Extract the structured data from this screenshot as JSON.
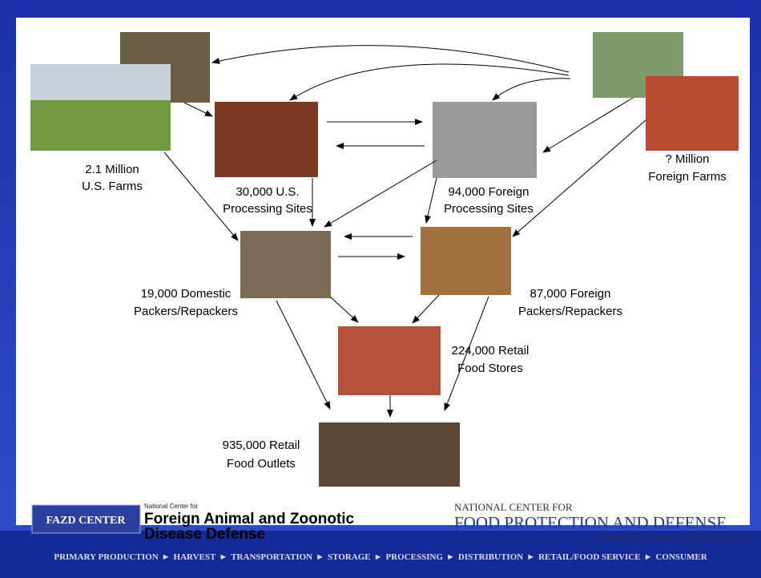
{
  "nodes": [
    {
      "label": [
        "2.1 Million",
        "U.S. Farms"
      ]
    },
    {
      "label": [
        "30,000 U.S.",
        "Processing Sites"
      ]
    },
    {
      "label": [
        "94,000 Foreign",
        "Processing Sites"
      ]
    },
    {
      "label": [
        "? Million",
        "Foreign Farms"
      ]
    },
    {
      "label": [
        "19,000 Domestic",
        "Packers/Repackers"
      ]
    },
    {
      "label": [
        "87,000 Foreign",
        "Packers/Repackers"
      ]
    },
    {
      "label": [
        "224,000 Retail",
        "Food Stores"
      ]
    },
    {
      "label": [
        "935,000 Retail",
        "Food Outlets"
      ]
    }
  ],
  "logos": {
    "fazd": {
      "badge": "FAZD CENTER",
      "small": "National Center for",
      "line1": "Foreign Animal and Zoonotic",
      "line2": "Disease Defense"
    },
    "ncfpd": {
      "top": "NATIONAL CENTER FOR",
      "main": "FOOD PROTECTION AND DEFENSE",
      "sub": "A HOMELAND SECURITY CENTER OF EXCELLENCE"
    }
  },
  "footer": {
    "separator": "►",
    "steps": [
      "PRIMARY PRODUCTION",
      "HARVEST",
      "TRANSPORTATION",
      "STORAGE",
      "PROCESSING",
      "DISTRIBUTION",
      "RETAIL/FOOD SERVICE",
      "CONSUMER"
    ]
  }
}
